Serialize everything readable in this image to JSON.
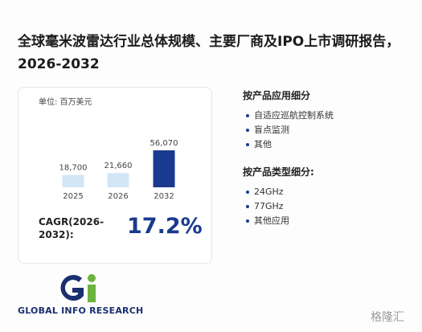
{
  "title": "全球毫米波雷达行业总体规模、主要厂商及IPO上市调研报告，2026-2032",
  "chart_data": {
    "type": "bar",
    "unit": "单位: 百万美元",
    "categories": [
      "2025",
      "2026",
      "2032"
    ],
    "values": [
      18700,
      21660,
      56070
    ],
    "value_labels": [
      "18,700",
      "21,660",
      "56,070"
    ],
    "colors": [
      "#d3e6f8",
      "#d3e6f8",
      "#1a3a8f"
    ]
  },
  "cagr": {
    "label": "CAGR(2026-2032):",
    "value": "17.2%"
  },
  "segments": [
    {
      "heading": "按产品应用细分",
      "items": [
        "自适应巡航控制系统",
        "盲点监测",
        "其他"
      ]
    },
    {
      "heading": "按产品类型细分:",
      "items": [
        "24GHz",
        "77GHz",
        "其他应用"
      ]
    }
  ],
  "logo": "GLOBAL INFO RESEARCH",
  "watermark": "格隆汇"
}
